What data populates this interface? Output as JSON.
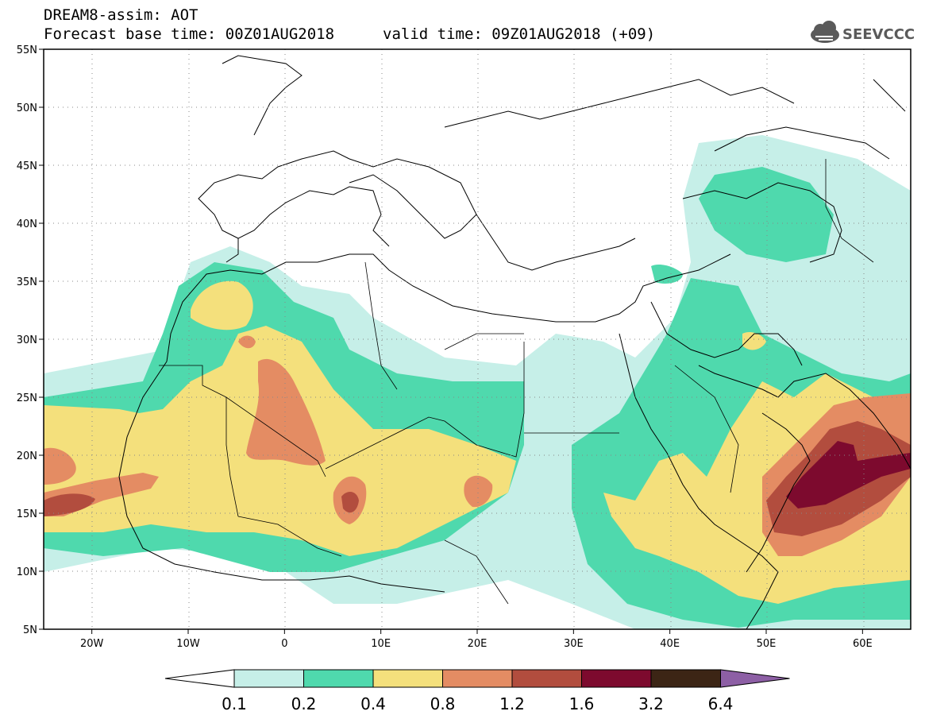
{
  "header": {
    "title_line1": "DREAM8-assim: AOT",
    "title_line2": "Forecast base time: 00Z01AUG2018",
    "valid_time": "valid time: 09Z01AUG2018 (+09)",
    "logo_text": "SEEVCCC"
  },
  "map": {
    "lat_labels": [
      "55N",
      "50N",
      "45N",
      "40N",
      "35N",
      "30N",
      "25N",
      "20N",
      "15N",
      "10N",
      "5N"
    ],
    "lon_labels": [
      "20W",
      "10W",
      "0",
      "10E",
      "20E",
      "30E",
      "40E",
      "50E",
      "60E"
    ],
    "lat_range": [
      5,
      55
    ],
    "lon_range": [
      -25,
      65
    ]
  },
  "colorbar": {
    "labels": [
      "0.1",
      "0.2",
      "0.4",
      "0.8",
      "1.2",
      "1.6",
      "3.2",
      "6.4"
    ],
    "colors": [
      "#ffffff",
      "#c6efe8",
      "#4fd9ad",
      "#f4e07c",
      "#e48c63",
      "#b24d3e",
      "#7d0a2e",
      "#3c2515",
      "#8d5fa5"
    ]
  }
}
